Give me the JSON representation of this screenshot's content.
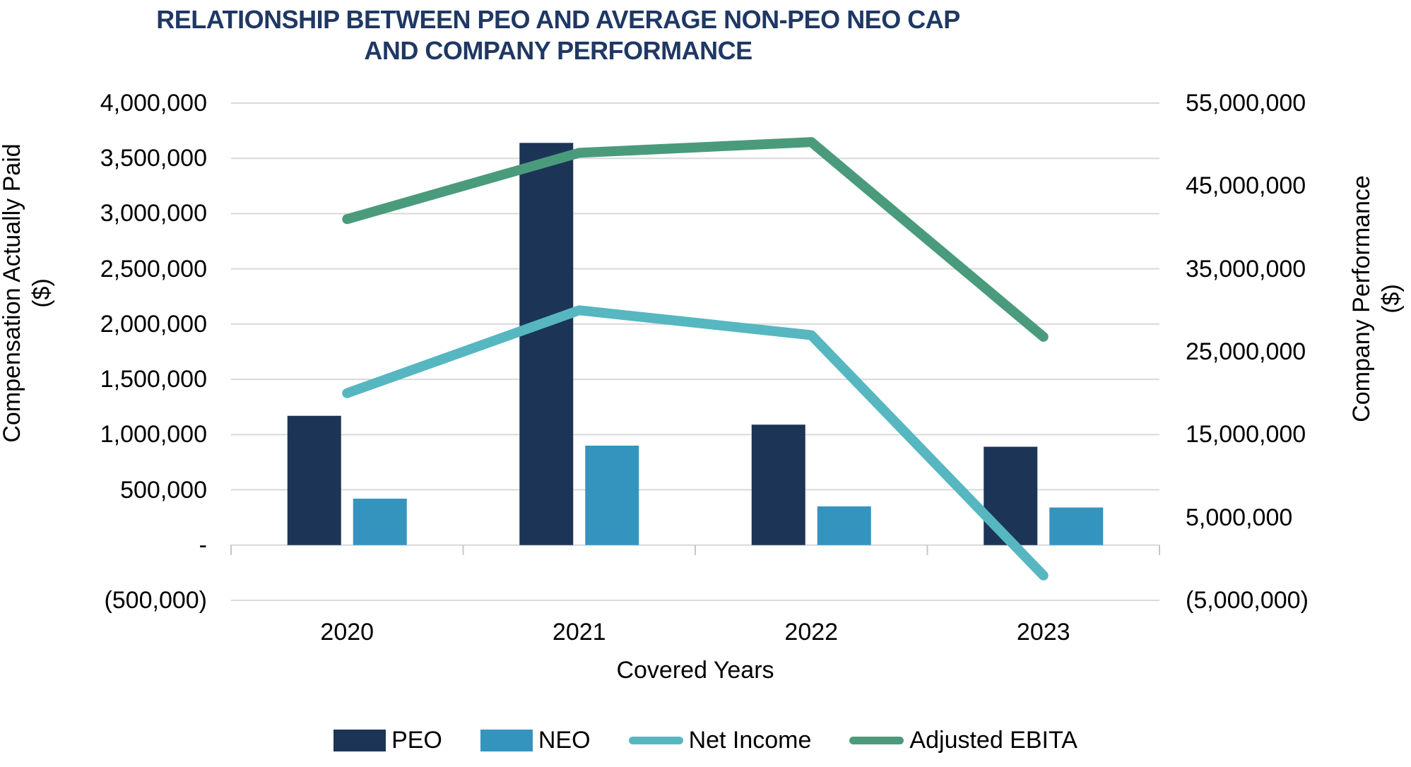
{
  "title": {
    "line1": "RELATIONSHIP BETWEEN PEO AND AVERAGE NON-PEO NEO CAP",
    "line2": "AND COMPANY PERFORMANCE"
  },
  "axis_titles": {
    "left_line1": "Compensation Actually Paid",
    "left_line2": "($)",
    "right_line1": "Company Performance",
    "right_line2": "($)",
    "x": "Covered Years"
  },
  "chart_data": {
    "type": "bar",
    "subtype": "combo-bar-line-dual-axis",
    "title": "RELATIONSHIP BETWEEN PEO AND AVERAGE NON-PEO NEO CAP AND COMPANY PERFORMANCE",
    "xlabel": "Covered Years",
    "ylabel_left": "Compensation Actually Paid ($)",
    "ylabel_right": "Company Performance ($)",
    "categories": [
      "2020",
      "2021",
      "2022",
      "2023"
    ],
    "series": [
      {
        "name": "PEO",
        "chart_type": "bar",
        "axis": "left",
        "color": "#1C3557",
        "values": [
          1170000,
          3640000,
          1090000,
          890000
        ]
      },
      {
        "name": "NEO",
        "chart_type": "bar",
        "axis": "left",
        "color": "#3494BE",
        "values": [
          420000,
          900000,
          350000,
          340000
        ]
      },
      {
        "name": "Net Income",
        "chart_type": "line",
        "axis": "right",
        "color": "#56B7C1",
        "values": [
          20000000,
          30000000,
          27000000,
          -2000000
        ]
      },
      {
        "name": "Adjusted EBITA",
        "chart_type": "line",
        "axis": "right",
        "color": "#4A9B7C",
        "values": [
          41000000,
          49000000,
          50300000,
          26800000
        ]
      }
    ],
    "left_axis": {
      "min": -500000,
      "max": 4000000,
      "step": 500000,
      "tick_labels": [
        "4,000,000",
        "3,500,000",
        "3,000,000",
        "2,500,000",
        "2,000,000",
        "1,500,000",
        "1,000,000",
        "500,000",
        "-",
        "(500,000)"
      ]
    },
    "right_axis": {
      "min": -5000000,
      "max": 55000000,
      "step": 10000000,
      "tick_labels": [
        "55,000,000",
        "45,000,000",
        "35,000,000",
        "25,000,000",
        "15,000,000",
        "5,000,000",
        "(5,000,000)"
      ]
    },
    "grid": true,
    "legend_position": "bottom"
  },
  "legend": {
    "items": [
      {
        "label": "PEO",
        "swatch": "rect",
        "color": "#1C3557"
      },
      {
        "label": "NEO",
        "swatch": "rect",
        "color": "#3494BE"
      },
      {
        "label": "Net Income",
        "swatch": "line",
        "color": "#56B7C1"
      },
      {
        "label": "Adjusted EBITA",
        "swatch": "line",
        "color": "#4A9B7C"
      }
    ]
  },
  "colors": {
    "background": "#FFFFFF",
    "title_text": "#1F3864",
    "axis_text": "#000000",
    "gridline": "#D9D9D9",
    "tick_mark": "#C6C6C6"
  }
}
